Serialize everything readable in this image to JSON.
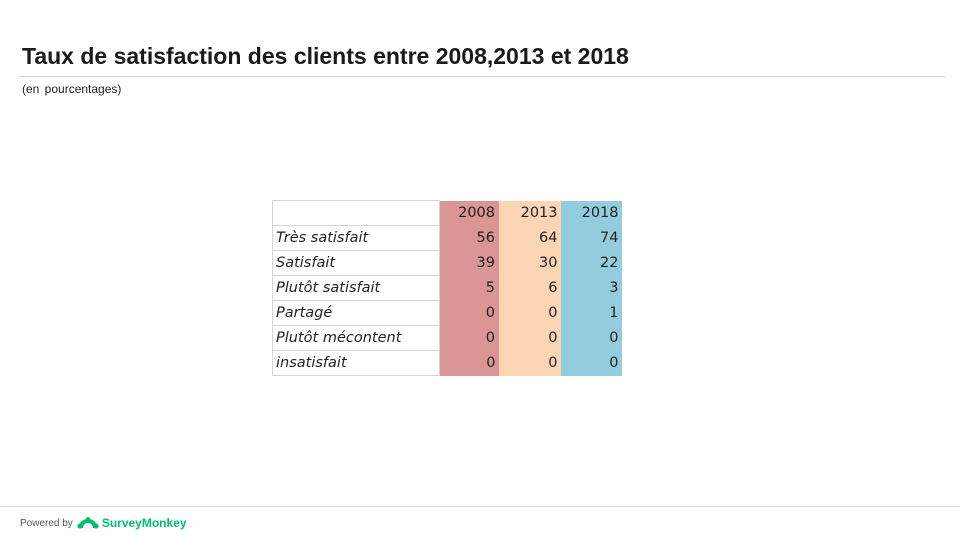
{
  "title": "Taux de satisfaction des clients entre 2008,2013 et 2018",
  "subtitle": "(en pourcentages)",
  "colors": {
    "2008": "#d99694",
    "2013": "#fcd5b5",
    "2018": "#93cddd",
    "brand": "#00bf6f"
  },
  "chart_data": {
    "type": "table",
    "columns": [
      "2008",
      "2013",
      "2018"
    ],
    "rows": [
      {
        "label": "Très satisfait",
        "values": [
          56,
          64,
          74
        ]
      },
      {
        "label": "Satisfait",
        "values": [
          39,
          30,
          22
        ]
      },
      {
        "label": "Plutôt satisfait",
        "values": [
          5,
          6,
          3
        ]
      },
      {
        "label": "Partagé",
        "values": [
          0,
          0,
          1
        ]
      },
      {
        "label": "Plutôt mécontent",
        "values": [
          0,
          0,
          0
        ]
      },
      {
        "label": "insatisfait",
        "values": [
          0,
          0,
          0
        ]
      }
    ]
  },
  "footer": {
    "powered_by": "Powered by",
    "brand_icon": "surveymonkey-logo-icon",
    "brand_name": "SurveyMonkey"
  }
}
